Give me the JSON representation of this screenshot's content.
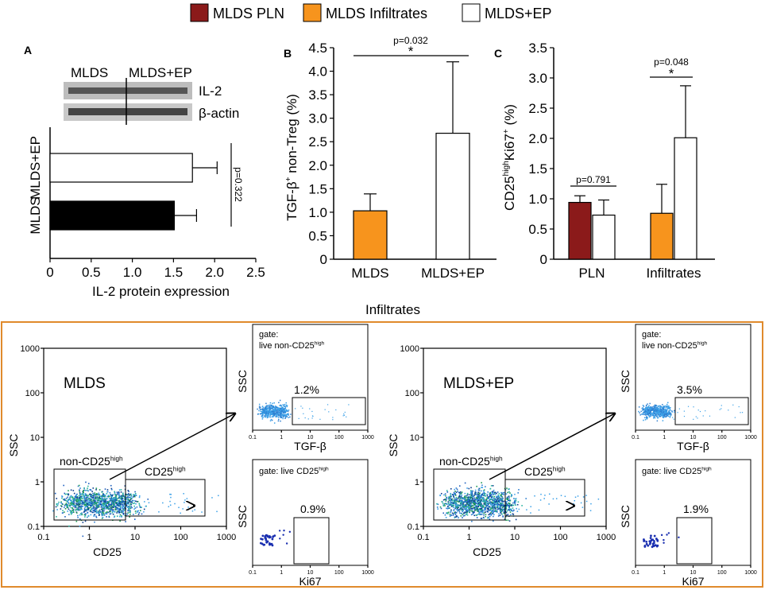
{
  "legend": [
    {
      "label": "MLDS PLN",
      "color": "#8b1a1a"
    },
    {
      "label": "MLDS Infiltrates",
      "color": "#f7941d"
    },
    {
      "label": "MLDS+EP",
      "color": "#ffffff"
    }
  ],
  "chart_data": [
    {
      "panel": "A",
      "type": "bar",
      "orientation": "horizontal",
      "categories": [
        "MLDS+EP",
        "MLDS"
      ],
      "values": [
        1.73,
        1.51
      ],
      "errors": [
        0.3,
        0.27
      ],
      "colors": [
        "#ffffff",
        "#000000"
      ],
      "xlabel": "IL-2 protein expression",
      "xlim": [
        0,
        2.5
      ],
      "xticks": [
        "0",
        "0.5",
        "1.0",
        "1.5",
        "2.0",
        "2.5"
      ],
      "pvalue": "p=0.322",
      "blot": {
        "lanes": [
          "MLDS",
          "MLDS+EP"
        ],
        "rows": [
          "IL-2",
          "β-actin"
        ]
      }
    },
    {
      "panel": "B",
      "type": "bar",
      "categories": [
        "MLDS",
        "MLDS+EP"
      ],
      "values": [
        1.03,
        2.68
      ],
      "errors": [
        0.36,
        1.52
      ],
      "colors": [
        "#f7941d",
        "#ffffff"
      ],
      "ylabel_main": "TGF-β",
      "ylabel_sup": "+",
      "ylabel_rest": " non-Treg (%)",
      "ylim": [
        0,
        4.5
      ],
      "yticks": [
        "0",
        "0.5",
        "1.0",
        "1.5",
        "2.0",
        "2.5",
        "3.0",
        "3.5",
        "4.0",
        "4.5"
      ],
      "pvalue": "p=0.032",
      "star": "*"
    },
    {
      "panel": "C",
      "type": "bar",
      "groups": [
        "PLN",
        "Infiltrates"
      ],
      "series": [
        {
          "name": "MLDS",
          "values": [
            0.94,
            0.76
          ],
          "errors": [
            0.11,
            0.48
          ],
          "colors": [
            "#8b1a1a",
            "#f7941d"
          ]
        },
        {
          "name": "MLDS+EP",
          "values": [
            0.73,
            2.01
          ],
          "errors": [
            0.25,
            0.86
          ],
          "colors": [
            "#ffffff",
            "#ffffff"
          ]
        }
      ],
      "ylabel_a": "CD25",
      "ylabel_sup": "high",
      "ylabel_b": "Ki67",
      "ylabel_sup2": "+",
      "ylabel_c": " (%)",
      "ylim": [
        0,
        3.5
      ],
      "yticks": [
        "0",
        "0.5",
        "1.0",
        "1.5",
        "2.0",
        "2.5",
        "3.0",
        "3.5"
      ],
      "pvalue_pln": "p=0.791",
      "pvalue_inf": "p=0.048",
      "star": "*"
    }
  ],
  "flow": {
    "title": "Infiltrates",
    "axis_ticks": [
      "0.1",
      "1",
      "10",
      "100",
      "1000"
    ],
    "ssc": "SSC",
    "cd25": "CD25",
    "non_cd25_label": "non-CD25",
    "cd25_label": "CD25",
    "sup_high": "high",
    "tgfb": "TGF-β",
    "ki67": "Ki67",
    "gate_label": "gate:",
    "gate_live_non": "live non-CD25",
    "gate_live_cd25": "gate: live CD25",
    "panels": [
      {
        "name": "MLDS",
        "tgfb_pct": "1.2%",
        "ki67_pct": "0.9%"
      },
      {
        "name": "MLDS+EP",
        "tgfb_pct": "3.5%",
        "ki67_pct": "1.9%"
      }
    ]
  }
}
